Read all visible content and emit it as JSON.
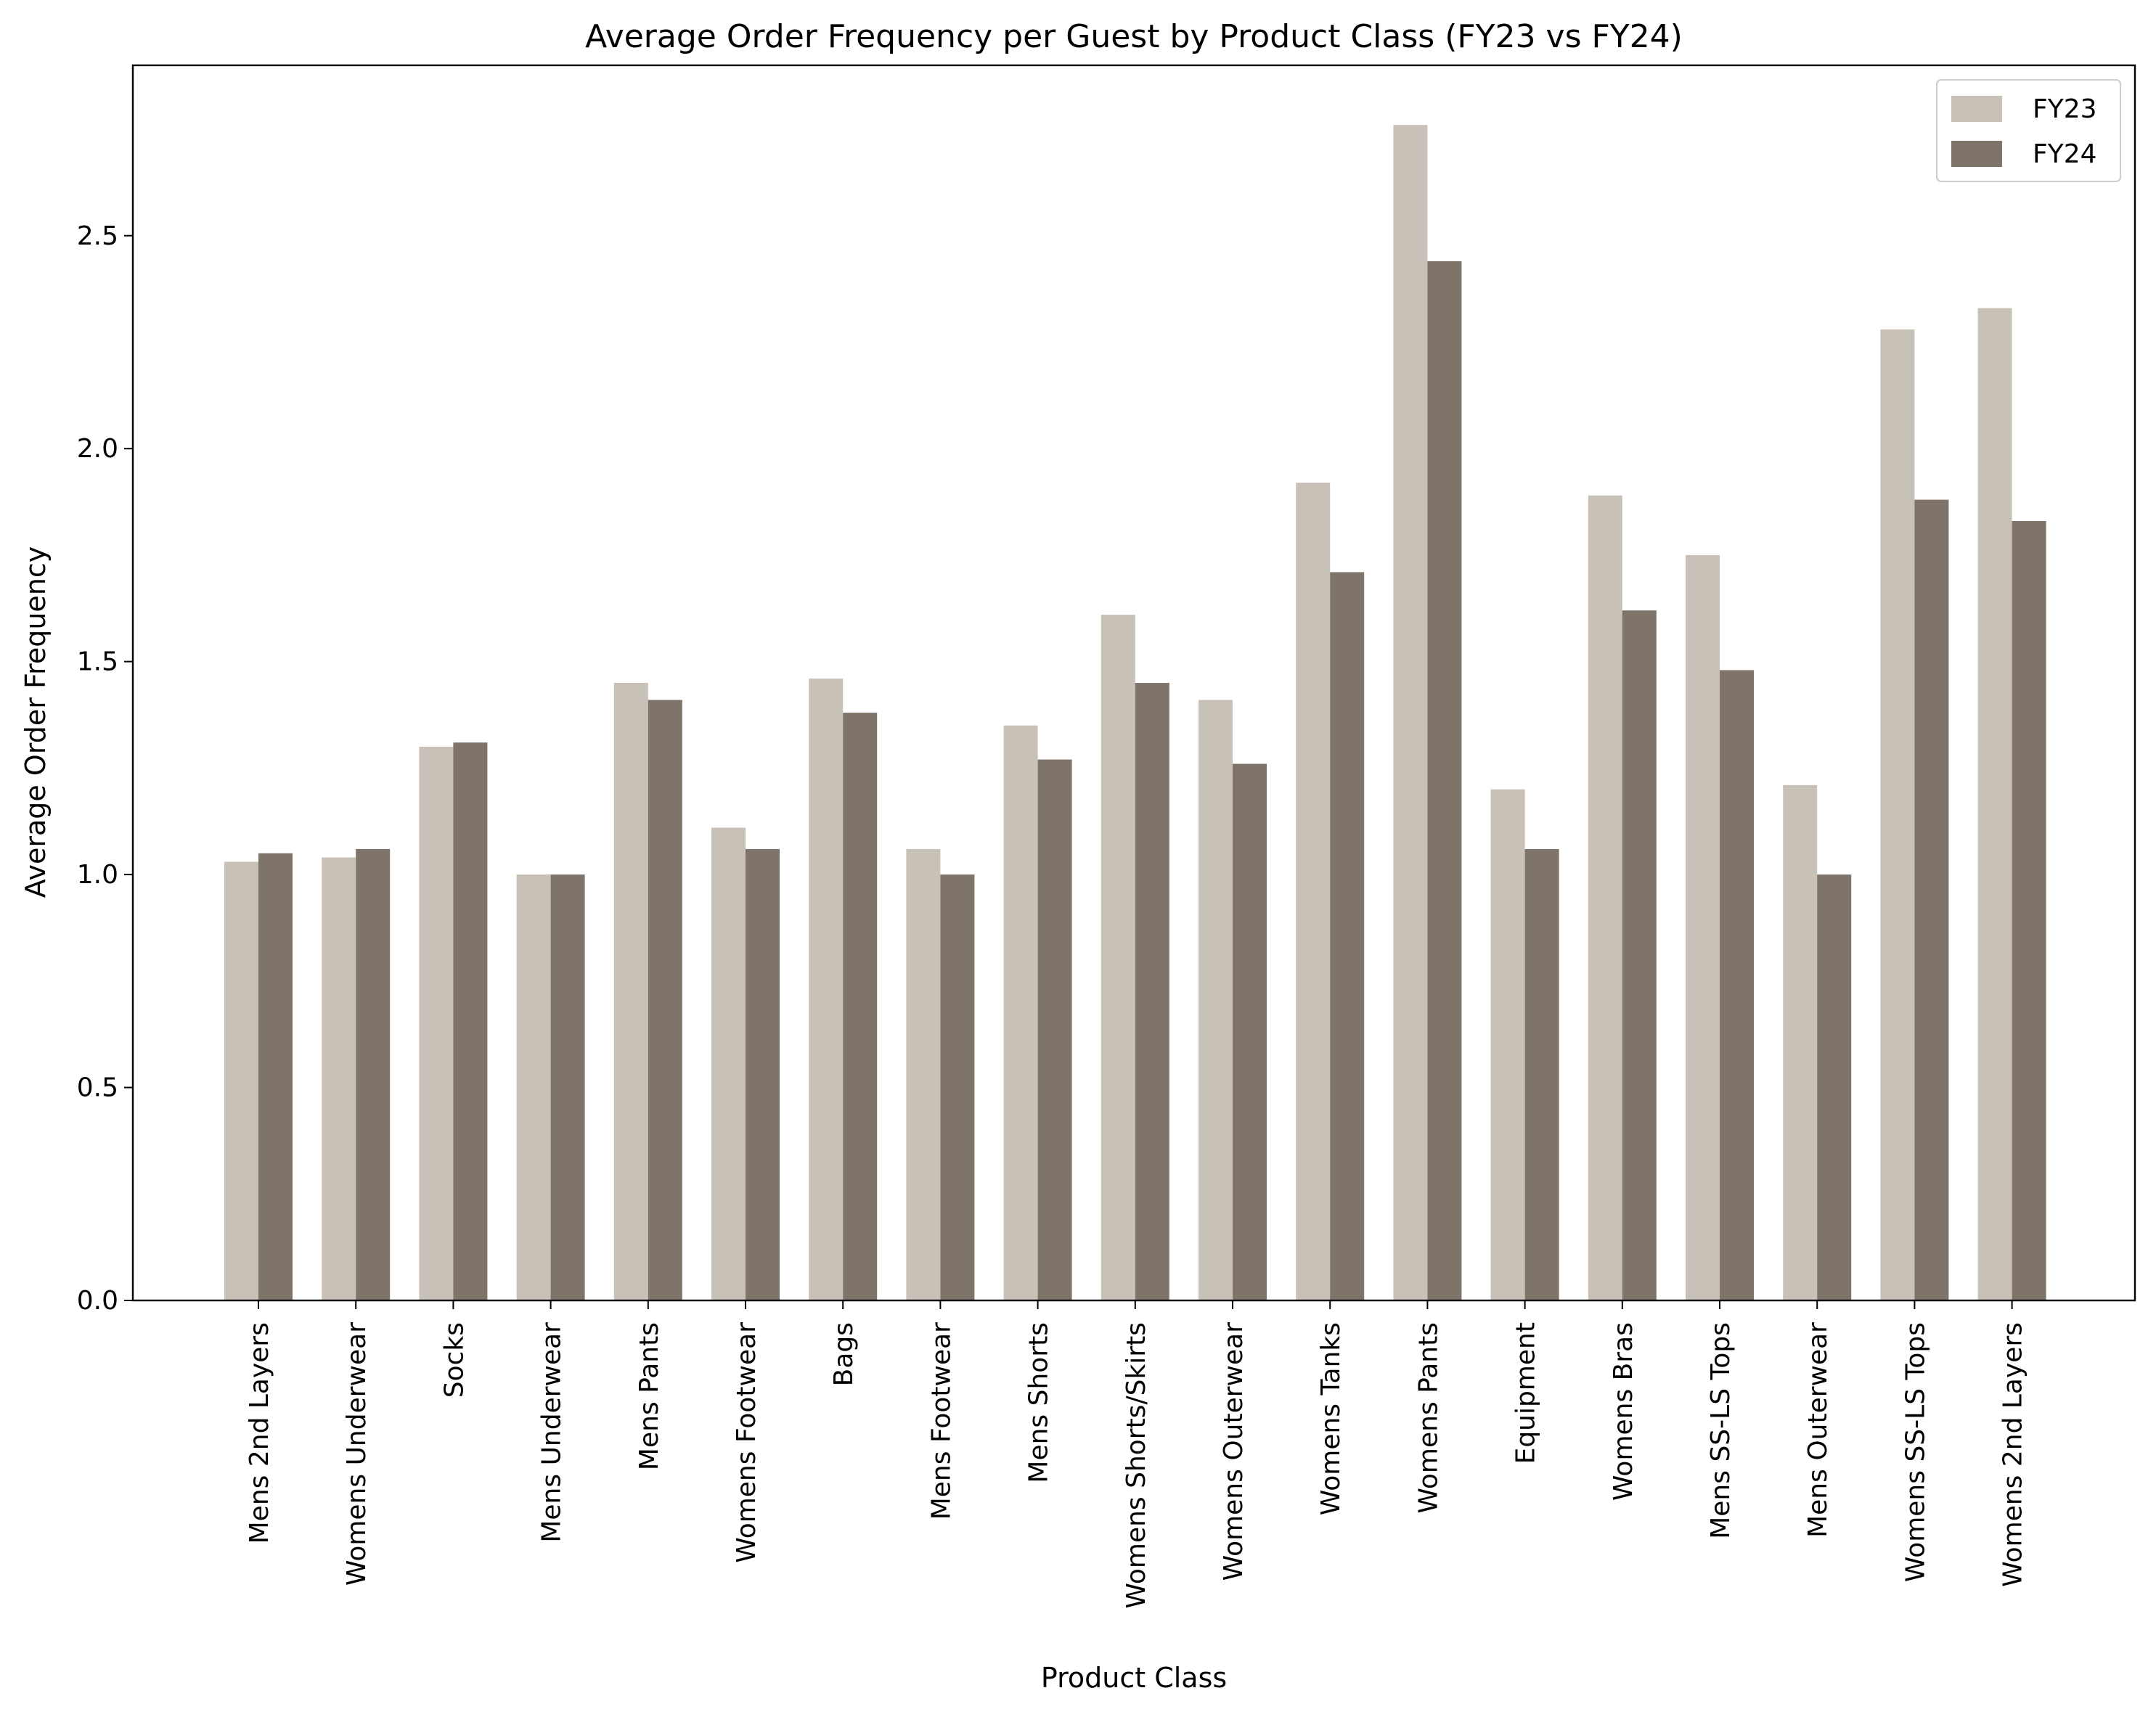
{
  "chart_data": {
    "type": "bar",
    "title": "Average Order Frequency per Guest by Product Class (FY23 vs FY24)",
    "xlabel": "Product Class",
    "ylabel": "Average Order Frequency",
    "ylim": [
      0,
      2.9
    ],
    "yticks": [
      "0.0",
      "0.5",
      "1.0",
      "1.5",
      "2.0",
      "2.5"
    ],
    "legend_position": "top-right",
    "grid": false,
    "categories": [
      "Mens 2nd Layers",
      "Womens Underwear",
      "Socks",
      "Mens Underwear",
      "Mens Pants",
      "Womens Footwear",
      "Bags",
      "Mens Footwear",
      "Mens Shorts",
      "Womens Shorts/Skirts",
      "Womens Outerwear",
      "Womens Tanks",
      "Womens Pants",
      "Equipment",
      "Womens Bras",
      "Mens SS-LS Tops",
      "Mens Outerwear",
      "Womens SS-LS Tops",
      "Womens 2nd Layers"
    ],
    "series": [
      {
        "name": "FY23",
        "color": "#c8c1b7",
        "values": [
          1.03,
          1.04,
          1.3,
          1.0,
          1.45,
          1.11,
          1.46,
          1.06,
          1.35,
          1.61,
          1.41,
          1.92,
          2.76,
          1.2,
          1.89,
          1.75,
          1.21,
          2.28,
          2.33
        ]
      },
      {
        "name": "FY24",
        "color": "#7f746a",
        "values": [
          1.05,
          1.06,
          1.31,
          1.0,
          1.41,
          1.06,
          1.38,
          1.0,
          1.27,
          1.45,
          1.26,
          1.71,
          2.44,
          1.06,
          1.62,
          1.48,
          1.0,
          1.88,
          1.83
        ]
      }
    ]
  }
}
